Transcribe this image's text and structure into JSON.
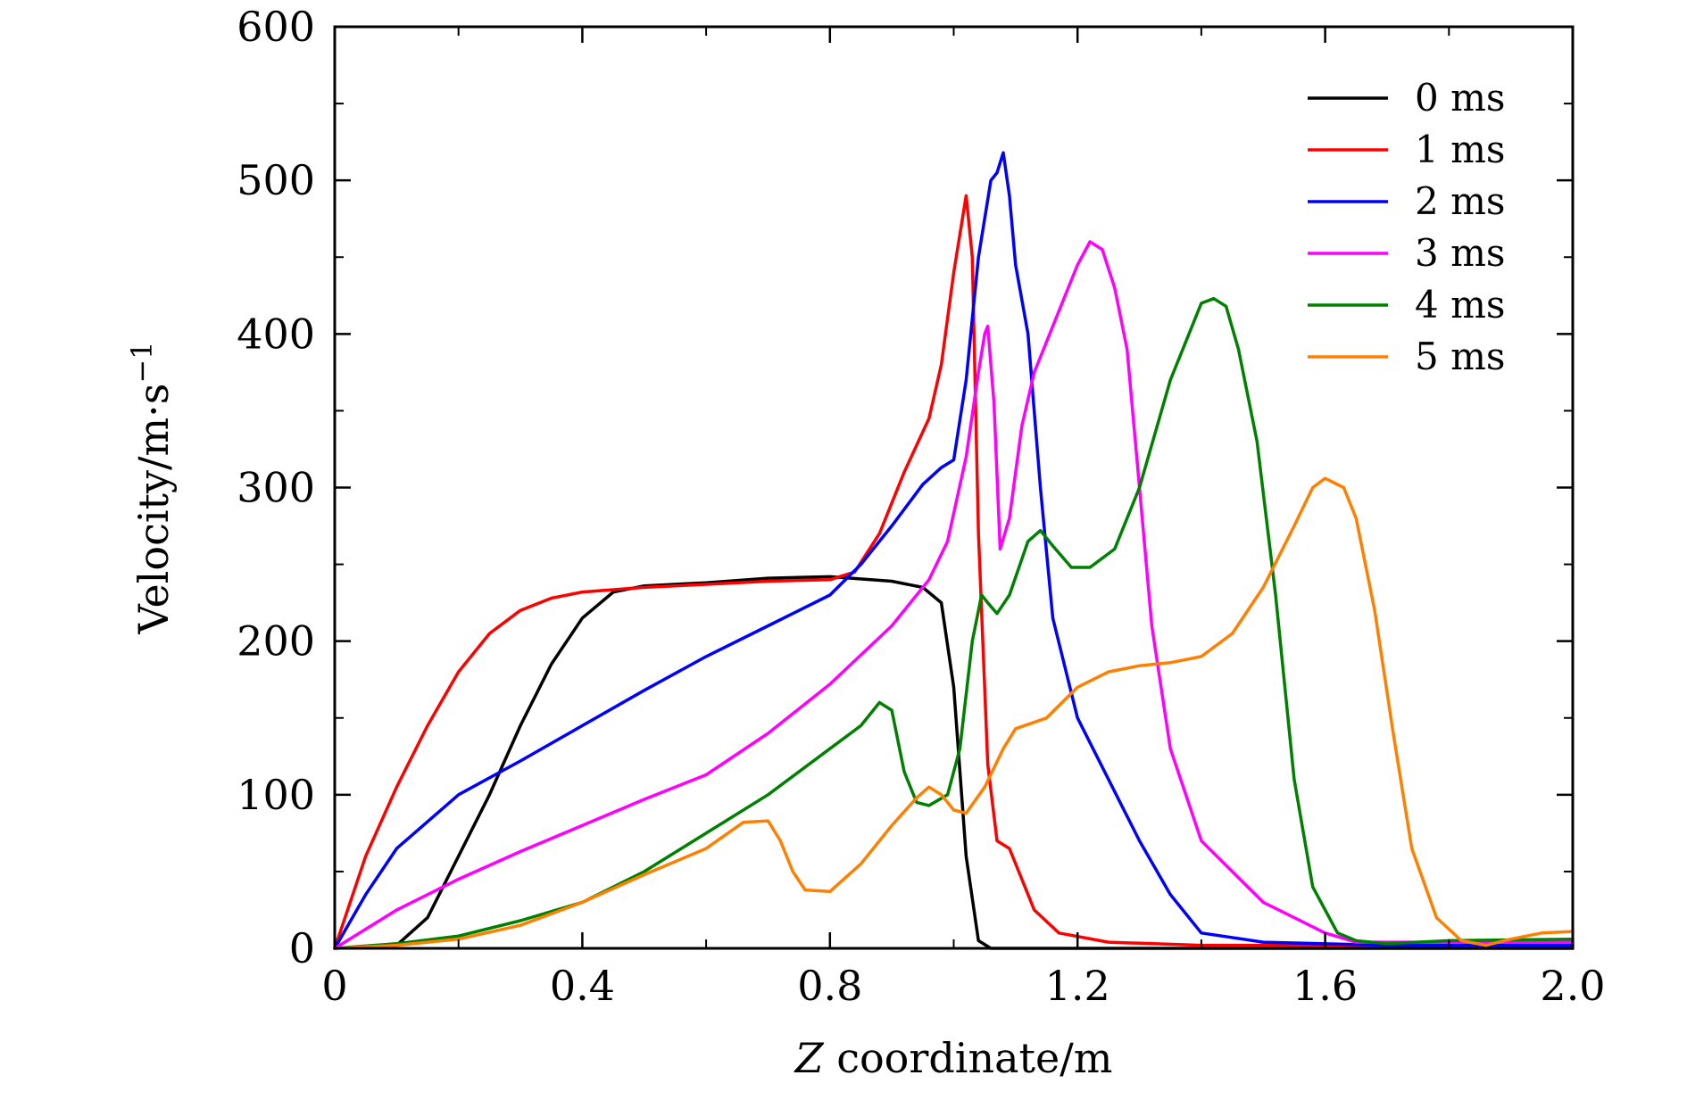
{
  "chart_data": {
    "type": "line",
    "title": "",
    "xlabel": {
      "italic": "Z",
      "rest": " coordinate/m"
    },
    "ylabel": {
      "base": "Velocity/m·s",
      "sup": "−1"
    },
    "xlim": [
      0,
      2.0
    ],
    "ylim": [
      0,
      600
    ],
    "xticks": [
      0,
      0.4,
      0.8,
      1.2,
      1.6,
      2.0
    ],
    "xtick_labels": [
      "0",
      "0.4",
      "0.8",
      "1.2",
      "1.6",
      "2.0"
    ],
    "yticks": [
      0,
      100,
      200,
      300,
      400,
      500,
      600
    ],
    "ytick_labels": [
      "0",
      "100",
      "200",
      "300",
      "400",
      "500",
      "600"
    ],
    "legend_position": "top-right",
    "grid": false,
    "series": [
      {
        "name": "0 ms",
        "color": "#000000",
        "points": [
          [
            0,
            0
          ],
          [
            0.1,
            2
          ],
          [
            0.15,
            20
          ],
          [
            0.2,
            60
          ],
          [
            0.25,
            100
          ],
          [
            0.3,
            145
          ],
          [
            0.35,
            185
          ],
          [
            0.4,
            215
          ],
          [
            0.45,
            232
          ],
          [
            0.5,
            236
          ],
          [
            0.6,
            238
          ],
          [
            0.7,
            241
          ],
          [
            0.8,
            242
          ],
          [
            0.9,
            239
          ],
          [
            0.95,
            235
          ],
          [
            0.98,
            225
          ],
          [
            1.0,
            170
          ],
          [
            1.02,
            60
          ],
          [
            1.04,
            5
          ],
          [
            1.06,
            0
          ],
          [
            2.0,
            0
          ]
        ]
      },
      {
        "name": "1 ms",
        "color": "#ff0000",
        "points": [
          [
            0,
            0
          ],
          [
            0.05,
            60
          ],
          [
            0.1,
            105
          ],
          [
            0.15,
            145
          ],
          [
            0.2,
            180
          ],
          [
            0.25,
            205
          ],
          [
            0.3,
            220
          ],
          [
            0.35,
            228
          ],
          [
            0.4,
            232
          ],
          [
            0.5,
            235
          ],
          [
            0.6,
            237
          ],
          [
            0.7,
            239
          ],
          [
            0.8,
            240
          ],
          [
            0.84,
            245
          ],
          [
            0.88,
            270
          ],
          [
            0.92,
            310
          ],
          [
            0.96,
            345
          ],
          [
            0.98,
            380
          ],
          [
            1.0,
            440
          ],
          [
            1.02,
            490
          ],
          [
            1.03,
            450
          ],
          [
            1.04,
            270
          ],
          [
            1.055,
            120
          ],
          [
            1.07,
            70
          ],
          [
            1.09,
            65
          ],
          [
            1.11,
            45
          ],
          [
            1.13,
            25
          ],
          [
            1.17,
            10
          ],
          [
            1.25,
            4
          ],
          [
            1.4,
            2
          ],
          [
            2.0,
            2
          ]
        ]
      },
      {
        "name": "2 ms",
        "color": "#0000ff",
        "points": [
          [
            0,
            0
          ],
          [
            0.05,
            35
          ],
          [
            0.1,
            65
          ],
          [
            0.2,
            100
          ],
          [
            0.3,
            122
          ],
          [
            0.4,
            145
          ],
          [
            0.5,
            168
          ],
          [
            0.6,
            190
          ],
          [
            0.7,
            210
          ],
          [
            0.8,
            230
          ],
          [
            0.85,
            250
          ],
          [
            0.9,
            275
          ],
          [
            0.95,
            302
          ],
          [
            0.98,
            313
          ],
          [
            1.0,
            318
          ],
          [
            1.02,
            370
          ],
          [
            1.04,
            450
          ],
          [
            1.06,
            500
          ],
          [
            1.07,
            505
          ],
          [
            1.08,
            518
          ],
          [
            1.09,
            490
          ],
          [
            1.1,
            445
          ],
          [
            1.12,
            400
          ],
          [
            1.14,
            300
          ],
          [
            1.16,
            215
          ],
          [
            1.2,
            150
          ],
          [
            1.3,
            70
          ],
          [
            1.35,
            35
          ],
          [
            1.4,
            10
          ],
          [
            1.5,
            4
          ],
          [
            1.7,
            2
          ],
          [
            2.0,
            2
          ]
        ]
      },
      {
        "name": "3 ms",
        "color": "#ff00ff",
        "points": [
          [
            0,
            0
          ],
          [
            0.1,
            25
          ],
          [
            0.2,
            45
          ],
          [
            0.3,
            63
          ],
          [
            0.4,
            80
          ],
          [
            0.5,
            97
          ],
          [
            0.6,
            113
          ],
          [
            0.7,
            140
          ],
          [
            0.8,
            172
          ],
          [
            0.9,
            210
          ],
          [
            0.96,
            240
          ],
          [
            0.99,
            265
          ],
          [
            1.02,
            320
          ],
          [
            1.04,
            375
          ],
          [
            1.05,
            400
          ],
          [
            1.055,
            405
          ],
          [
            1.065,
            355
          ],
          [
            1.075,
            260
          ],
          [
            1.09,
            280
          ],
          [
            1.11,
            340
          ],
          [
            1.13,
            375
          ],
          [
            1.16,
            405
          ],
          [
            1.2,
            445
          ],
          [
            1.22,
            460
          ],
          [
            1.24,
            455
          ],
          [
            1.26,
            430
          ],
          [
            1.28,
            390
          ],
          [
            1.3,
            300
          ],
          [
            1.32,
            210
          ],
          [
            1.35,
            130
          ],
          [
            1.4,
            70
          ],
          [
            1.5,
            30
          ],
          [
            1.6,
            10
          ],
          [
            1.65,
            4
          ],
          [
            2.0,
            4
          ]
        ]
      },
      {
        "name": "4 ms",
        "color": "#008000",
        "points": [
          [
            0,
            0
          ],
          [
            0.1,
            3
          ],
          [
            0.2,
            8
          ],
          [
            0.3,
            18
          ],
          [
            0.4,
            30
          ],
          [
            0.5,
            50
          ],
          [
            0.6,
            75
          ],
          [
            0.7,
            100
          ],
          [
            0.8,
            130
          ],
          [
            0.85,
            145
          ],
          [
            0.88,
            160
          ],
          [
            0.9,
            155
          ],
          [
            0.92,
            115
          ],
          [
            0.94,
            95
          ],
          [
            0.96,
            93
          ],
          [
            0.99,
            100
          ],
          [
            1.01,
            130
          ],
          [
            1.03,
            200
          ],
          [
            1.045,
            230
          ],
          [
            1.055,
            225
          ],
          [
            1.07,
            218
          ],
          [
            1.09,
            230
          ],
          [
            1.12,
            265
          ],
          [
            1.14,
            272
          ],
          [
            1.16,
            262
          ],
          [
            1.19,
            248
          ],
          [
            1.22,
            248
          ],
          [
            1.26,
            260
          ],
          [
            1.3,
            300
          ],
          [
            1.35,
            370
          ],
          [
            1.4,
            420
          ],
          [
            1.42,
            423
          ],
          [
            1.44,
            418
          ],
          [
            1.46,
            390
          ],
          [
            1.49,
            330
          ],
          [
            1.52,
            230
          ],
          [
            1.55,
            110
          ],
          [
            1.58,
            40
          ],
          [
            1.62,
            10
          ],
          [
            1.65,
            5
          ],
          [
            1.7,
            3
          ],
          [
            1.8,
            5
          ],
          [
            2.0,
            6
          ]
        ]
      },
      {
        "name": "5 ms",
        "color": "#ff8000",
        "points": [
          [
            0,
            0
          ],
          [
            0.1,
            2
          ],
          [
            0.2,
            6
          ],
          [
            0.3,
            15
          ],
          [
            0.4,
            30
          ],
          [
            0.5,
            48
          ],
          [
            0.6,
            65
          ],
          [
            0.66,
            82
          ],
          [
            0.7,
            83
          ],
          [
            0.72,
            70
          ],
          [
            0.74,
            50
          ],
          [
            0.76,
            38
          ],
          [
            0.8,
            37
          ],
          [
            0.85,
            55
          ],
          [
            0.9,
            80
          ],
          [
            0.94,
            98
          ],
          [
            0.96,
            105
          ],
          [
            0.98,
            100
          ],
          [
            1.0,
            90
          ],
          [
            1.02,
            88
          ],
          [
            1.05,
            105
          ],
          [
            1.08,
            130
          ],
          [
            1.1,
            143
          ],
          [
            1.15,
            150
          ],
          [
            1.2,
            170
          ],
          [
            1.25,
            180
          ],
          [
            1.3,
            184
          ],
          [
            1.35,
            186
          ],
          [
            1.4,
            190
          ],
          [
            1.45,
            205
          ],
          [
            1.5,
            235
          ],
          [
            1.55,
            275
          ],
          [
            1.58,
            300
          ],
          [
            1.6,
            306
          ],
          [
            1.63,
            300
          ],
          [
            1.65,
            280
          ],
          [
            1.68,
            220
          ],
          [
            1.71,
            140
          ],
          [
            1.74,
            65
          ],
          [
            1.78,
            20
          ],
          [
            1.82,
            5
          ],
          [
            1.86,
            2
          ],
          [
            1.9,
            6
          ],
          [
            1.95,
            10
          ],
          [
            2.0,
            11
          ]
        ]
      }
    ]
  }
}
